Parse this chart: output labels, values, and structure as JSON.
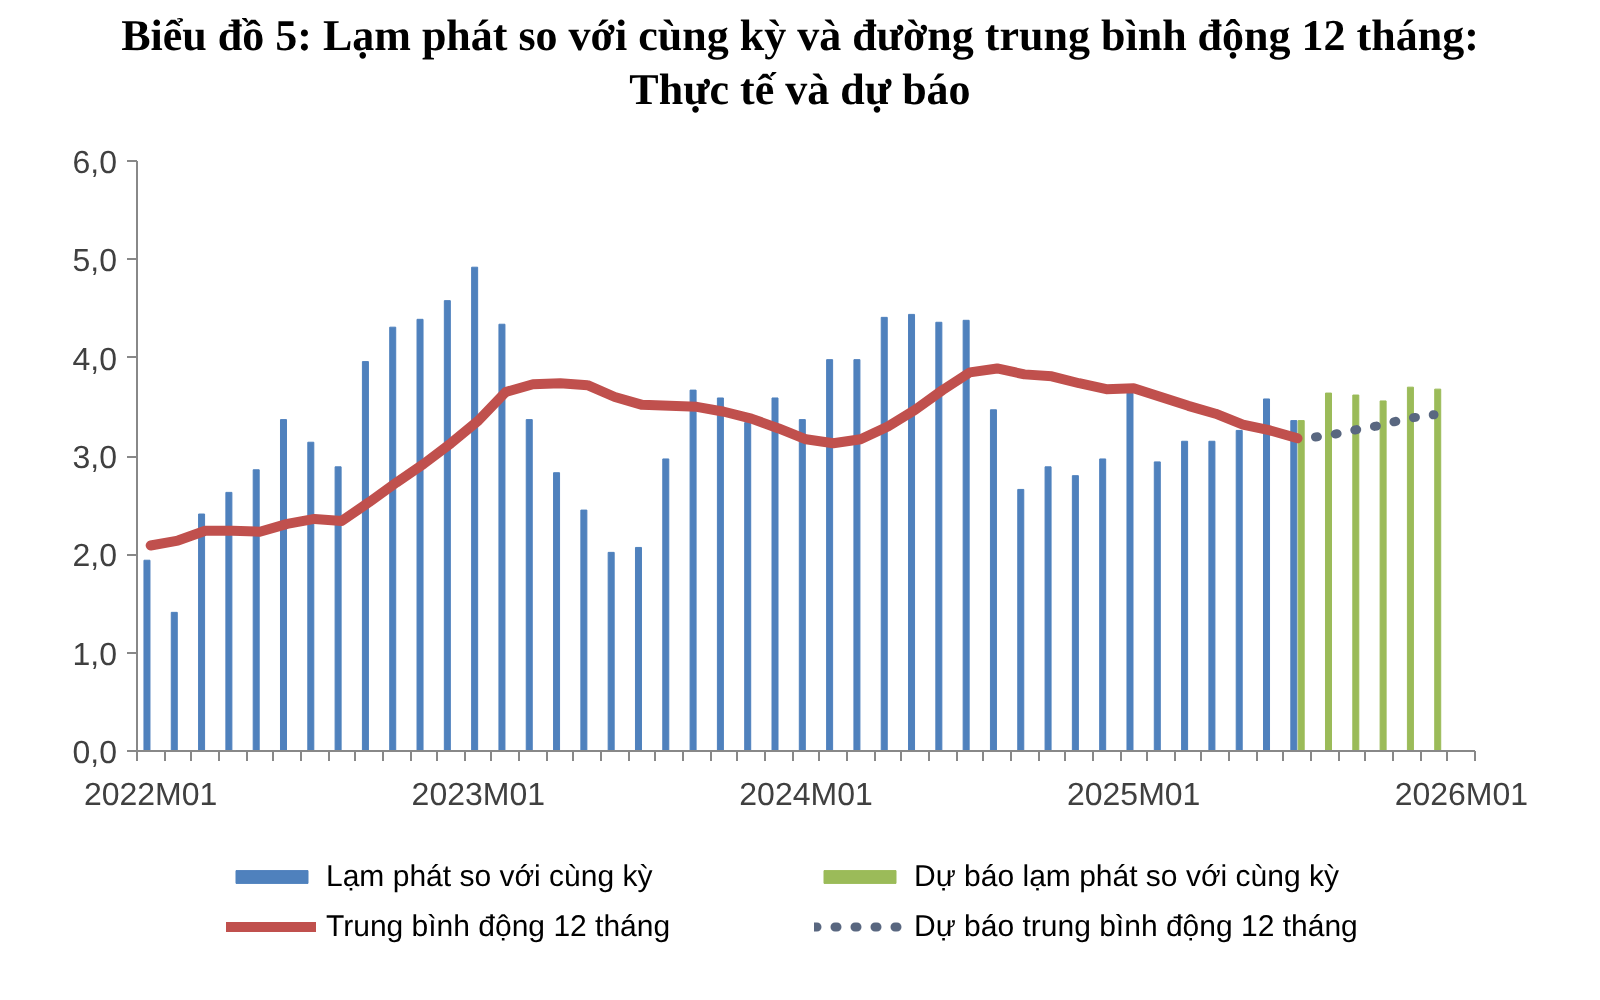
{
  "chart_data": {
    "type": "bar",
    "title": "Biểu đồ 5: Lạm phát so với cùng kỳ và đường trung bình động 12 tháng: Thực tế và dự báo",
    "categories": [
      "2022M01",
      null,
      null,
      null,
      null,
      null,
      null,
      null,
      null,
      null,
      null,
      null,
      "2023M01",
      null,
      null,
      null,
      null,
      null,
      null,
      null,
      null,
      null,
      null,
      null,
      "2024M01",
      null,
      null,
      null,
      null,
      null,
      null,
      null,
      null,
      null,
      null,
      null,
      "2025M01",
      null,
      null,
      null,
      null,
      null,
      null,
      null,
      null,
      null,
      null,
      null,
      "2026M01"
    ],
    "ylim": [
      0,
      6
    ],
    "yticks": [
      {
        "value": 0,
        "label": "0,0"
      },
      {
        "value": 1,
        "label": "1,0"
      },
      {
        "value": 2,
        "label": "2,0"
      },
      {
        "value": 3,
        "label": "3,0"
      },
      {
        "value": 4,
        "label": "4,0"
      },
      {
        "value": 5,
        "label": "5,0"
      },
      {
        "value": 6,
        "label": "6,0"
      }
    ],
    "legend": "bottom",
    "series": [
      {
        "name": "Lạm phát so với cùng kỳ",
        "color": "#4f81bd",
        "values": [
          1.94,
          1.41,
          2.41,
          2.63,
          2.86,
          3.37,
          3.14,
          2.89,
          3.96,
          4.31,
          4.39,
          4.58,
          4.92,
          4.34,
          3.37,
          2.83,
          2.45,
          2.02,
          2.07,
          2.97,
          3.67,
          3.59,
          3.34,
          3.59,
          3.37,
          3.98,
          3.98,
          4.41,
          4.44,
          4.36,
          4.38,
          3.47,
          2.66,
          2.89,
          2.8,
          2.97,
          3.64,
          2.94,
          3.15,
          3.15,
          3.26,
          3.58,
          3.36,
          null,
          null,
          null,
          null,
          null,
          null
        ]
      },
      {
        "name": "Dự báo lạm phát so với cùng kỳ",
        "color": "#9bbb59",
        "values": [
          null,
          null,
          null,
          null,
          null,
          null,
          null,
          null,
          null,
          null,
          null,
          null,
          null,
          null,
          null,
          null,
          null,
          null,
          null,
          null,
          null,
          null,
          null,
          null,
          null,
          null,
          null,
          null,
          null,
          null,
          null,
          null,
          null,
          null,
          null,
          null,
          null,
          null,
          null,
          null,
          null,
          null,
          3.36,
          3.64,
          3.62,
          3.56,
          3.7,
          3.68,
          null
        ]
      },
      {
        "name": "Trung bình động 12 tháng",
        "type": "line",
        "line_style": "solid",
        "color": "#c0504d",
        "values": [
          2.09,
          2.14,
          2.24,
          2.24,
          2.23,
          2.31,
          2.36,
          2.34,
          2.53,
          2.73,
          2.92,
          3.13,
          3.36,
          3.65,
          3.73,
          3.74,
          3.72,
          3.6,
          3.52,
          3.51,
          3.5,
          3.45,
          3.38,
          3.28,
          3.17,
          3.13,
          3.17,
          3.3,
          3.47,
          3.67,
          3.85,
          3.89,
          3.83,
          3.81,
          3.74,
          3.68,
          3.69,
          3.6,
          3.51,
          3.43,
          3.32,
          3.26,
          3.18,
          null,
          null,
          null,
          null,
          null,
          null
        ]
      },
      {
        "name": "Dự báo trung bình động 12 tháng",
        "type": "line",
        "line_style": "dotted",
        "color": "#596780",
        "values": [
          null,
          null,
          null,
          null,
          null,
          null,
          null,
          null,
          null,
          null,
          null,
          null,
          null,
          null,
          null,
          null,
          null,
          null,
          null,
          null,
          null,
          null,
          null,
          null,
          null,
          null,
          null,
          null,
          null,
          null,
          null,
          null,
          null,
          null,
          null,
          null,
          null,
          null,
          null,
          null,
          null,
          null,
          3.18,
          3.2,
          3.26,
          3.31,
          3.38,
          3.42,
          null
        ]
      }
    ]
  }
}
